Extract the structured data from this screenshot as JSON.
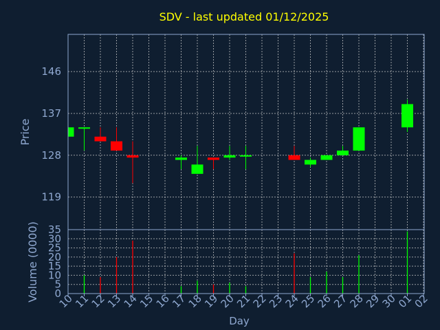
{
  "chart_data": {
    "type": "candlestick",
    "title": "SDV - last updated 01/12/2025",
    "xlabel": "Day",
    "price_ylabel": "Price",
    "volume_ylabel": "Volume (0000)",
    "x_ticks": [
      "10",
      "11",
      "12",
      "13",
      "14",
      "15",
      "16",
      "17",
      "18",
      "19",
      "20",
      "21",
      "22",
      "23",
      "24",
      "25",
      "26",
      "27",
      "28",
      "29",
      "30",
      "01",
      "02"
    ],
    "price_ylim": [
      112,
      154
    ],
    "price_ticks": [
      119,
      128,
      137,
      146
    ],
    "volume_ylim": [
      0,
      35
    ],
    "volume_ticks": [
      0,
      5,
      10,
      15,
      20,
      25,
      30,
      35
    ],
    "colors": {
      "background": "#0f1e30",
      "up": "#00ff00",
      "down": "#ff0000",
      "title": "#ffff00",
      "axis_text": "#8fa8d0",
      "grid": "#c8c8c8",
      "frame": "#8fa8d0"
    },
    "candles": [
      {
        "day": "10",
        "open": 132,
        "high": 134,
        "low": 132,
        "close": 134
      },
      {
        "day": "11",
        "open": 134,
        "high": 134,
        "low": 129,
        "close": 134
      },
      {
        "day": "12",
        "open": 132,
        "high": 134,
        "low": 131,
        "close": 131
      },
      {
        "day": "13",
        "open": 131,
        "high": 134,
        "low": 129,
        "close": 129
      },
      {
        "day": "14",
        "open": 128,
        "high": 131,
        "low": 122,
        "close": 127.5
      },
      {
        "day": "17",
        "open": 127,
        "high": 128,
        "low": 125,
        "close": 127.5
      },
      {
        "day": "18",
        "open": 124,
        "high": 130,
        "low": 124,
        "close": 126
      },
      {
        "day": "19",
        "open": 127.5,
        "high": 127.5,
        "low": 125,
        "close": 127
      },
      {
        "day": "20",
        "open": 127.5,
        "high": 130,
        "low": 127,
        "close": 128
      },
      {
        "day": "21",
        "open": 128,
        "high": 130,
        "low": 125,
        "close": 128
      },
      {
        "day": "24",
        "open": 128,
        "high": 130,
        "low": 127,
        "close": 127
      },
      {
        "day": "25",
        "open": 126,
        "high": 127.5,
        "low": 125.5,
        "close": 127
      },
      {
        "day": "26",
        "open": 127,
        "high": 128,
        "low": 127,
        "close": 128
      },
      {
        "day": "27",
        "open": 128,
        "high": 130,
        "low": 128,
        "close": 129
      },
      {
        "day": "28",
        "open": 129,
        "high": 134,
        "low": 129,
        "close": 134
      },
      {
        "day": "01",
        "open": 134,
        "high": 140,
        "low": 133,
        "close": 139
      }
    ],
    "volume": [
      {
        "day": "11",
        "value": 10,
        "direction": "up"
      },
      {
        "day": "12",
        "value": 9,
        "direction": "down"
      },
      {
        "day": "13",
        "value": 20,
        "direction": "down"
      },
      {
        "day": "14",
        "value": 29,
        "direction": "down"
      },
      {
        "day": "17",
        "value": 4,
        "direction": "up"
      },
      {
        "day": "18",
        "value": 7,
        "direction": "up"
      },
      {
        "day": "19",
        "value": 5,
        "direction": "down"
      },
      {
        "day": "20",
        "value": 6,
        "direction": "up"
      },
      {
        "day": "21",
        "value": 4,
        "direction": "up"
      },
      {
        "day": "24",
        "value": 22,
        "direction": "down"
      },
      {
        "day": "25",
        "value": 9,
        "direction": "up"
      },
      {
        "day": "26",
        "value": 12,
        "direction": "up"
      },
      {
        "day": "27",
        "value": 9,
        "direction": "up"
      },
      {
        "day": "28",
        "value": 21,
        "direction": "up"
      },
      {
        "day": "01",
        "value": 34,
        "direction": "up"
      }
    ]
  }
}
